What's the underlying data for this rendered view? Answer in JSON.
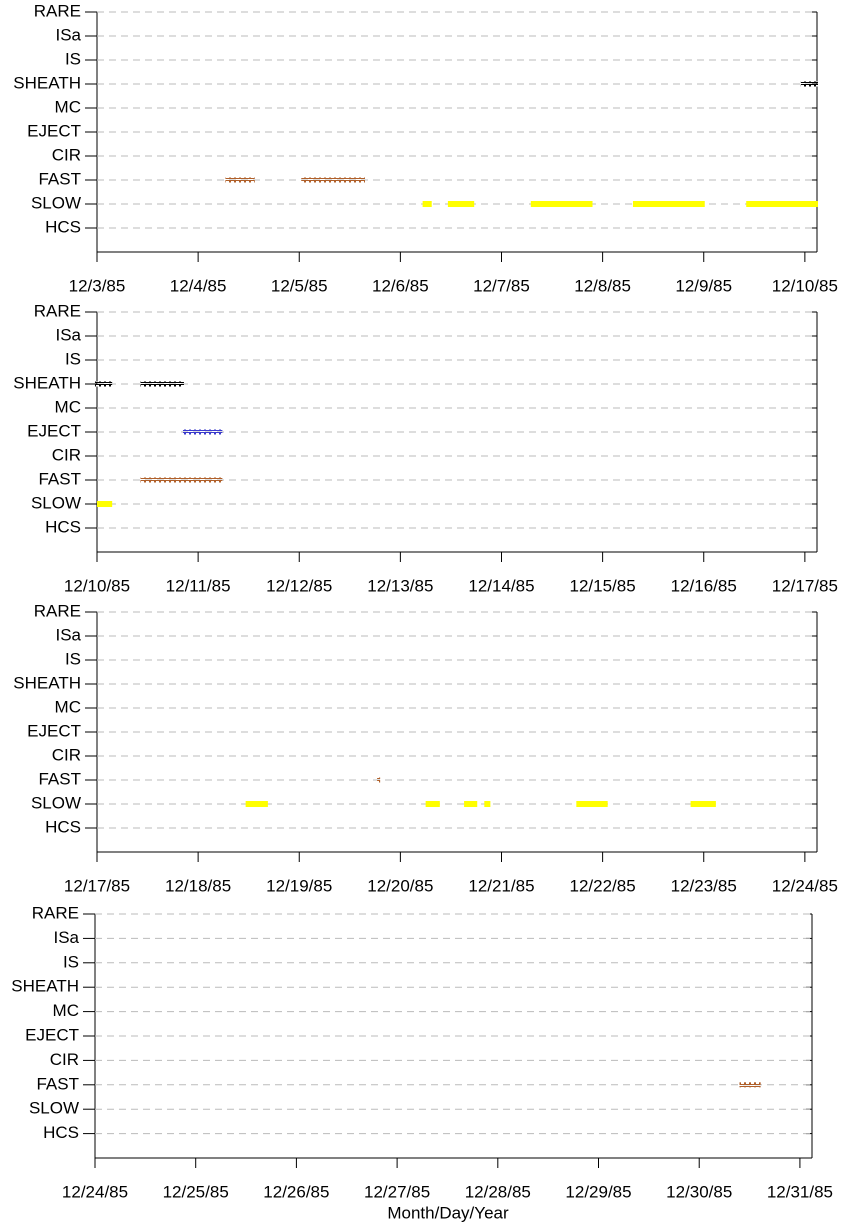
{
  "chart_data": [
    {
      "type": "timeline",
      "categories": [
        "RARE",
        "ISa",
        "IS",
        "SHEATH",
        "MC",
        "EJECT",
        "CIR",
        "FAST",
        "SLOW",
        "HCS"
      ],
      "colors": [
        "#000000",
        "#000000",
        "#000000",
        "#000000",
        "#000000",
        "#3a3acc",
        "#000000",
        "#b0602a",
        "#ffff00",
        "#000000"
      ],
      "styles": [
        "squares",
        "squares",
        "squares",
        "squares",
        "squares",
        "squares",
        "squares",
        "squares",
        "bar",
        "squares"
      ],
      "values": [
        [],
        [],
        [],
        [
          [
            9.96,
            10.13
          ]
        ],
        [],
        [],
        [],
        [
          [
            4.27,
            4.56
          ],
          [
            5.02,
            5.65
          ]
        ],
        [
          [
            6.22,
            6.31
          ],
          [
            6.47,
            6.73
          ],
          [
            7.29,
            7.9
          ],
          [
            8.3,
            9.01
          ],
          [
            9.42,
            10.13
          ]
        ],
        []
      ],
      "xlim": [
        3,
        10.12
      ],
      "xticks": [
        {
          "value": 3,
          "label": "12/3/85"
        },
        {
          "value": 4,
          "label": "12/4/85"
        },
        {
          "value": 5,
          "label": "12/5/85"
        },
        {
          "value": 6,
          "label": "12/6/85"
        },
        {
          "value": 7,
          "label": "12/7/85"
        },
        {
          "value": 8,
          "label": "12/8/85"
        },
        {
          "value": 9,
          "label": "12/9/85"
        },
        {
          "value": 10,
          "label": "12/10/85"
        }
      ],
      "grid": true
    },
    {
      "type": "timeline",
      "categories": [
        "RARE",
        "ISa",
        "IS",
        "SHEATH",
        "MC",
        "EJECT",
        "CIR",
        "FAST",
        "SLOW",
        "HCS"
      ],
      "colors": [
        "#000000",
        "#000000",
        "#000000",
        "#000000",
        "#000000",
        "#3a3acc",
        "#000000",
        "#b0602a",
        "#ffff00",
        "#000000"
      ],
      "styles": [
        "squares",
        "squares",
        "squares",
        "squares",
        "squares",
        "squares",
        "squares",
        "squares",
        "bar",
        "squares"
      ],
      "values": [
        [],
        [],
        [],
        [
          [
            9.98,
            10.15
          ],
          [
            10.43,
            10.86
          ]
        ],
        [],
        [
          [
            10.85,
            11.24
          ]
        ],
        [],
        [
          [
            10.43,
            11.24
          ]
        ],
        [
          [
            10,
            10.15
          ]
        ],
        []
      ],
      "xlim": [
        10,
        17.12
      ],
      "xticks": [
        {
          "value": 10,
          "label": "12/10/85"
        },
        {
          "value": 11,
          "label": "12/11/85"
        },
        {
          "value": 12,
          "label": "12/12/85"
        },
        {
          "value": 13,
          "label": "12/13/85"
        },
        {
          "value": 14,
          "label": "12/14/85"
        },
        {
          "value": 15,
          "label": "12/15/85"
        },
        {
          "value": 16,
          "label": "12/16/85"
        },
        {
          "value": 17,
          "label": "12/17/85"
        }
      ],
      "grid": true
    },
    {
      "type": "timeline",
      "categories": [
        "RARE",
        "ISa",
        "IS",
        "SHEATH",
        "MC",
        "EJECT",
        "CIR",
        "FAST",
        "SLOW",
        "HCS"
      ],
      "colors": [
        "#000000",
        "#000000",
        "#000000",
        "#000000",
        "#000000",
        "#3a3acc",
        "#000000",
        "#b0602a",
        "#ffff00",
        "#000000"
      ],
      "styles": [
        "squares",
        "squares",
        "squares",
        "squares",
        "squares",
        "squares",
        "squares",
        "squares",
        "bar",
        "squares"
      ],
      "values": [
        [],
        [],
        [],
        [],
        [],
        [],
        [],
        [
          [
            19.77,
            19.8
          ]
        ],
        [
          [
            18.47,
            18.69
          ],
          [
            20.25,
            20.39
          ],
          [
            20.63,
            20.76
          ],
          [
            20.83,
            20.89
          ],
          [
            21.74,
            22.05
          ],
          [
            22.87,
            23.12
          ]
        ],
        []
      ],
      "xlim": [
        17,
        24.12
      ],
      "xticks": [
        {
          "value": 17,
          "label": "12/17/85"
        },
        {
          "value": 18,
          "label": "12/18/85"
        },
        {
          "value": 19,
          "label": "12/19/85"
        },
        {
          "value": 20,
          "label": "12/20/85"
        },
        {
          "value": 21,
          "label": "12/21/85"
        },
        {
          "value": 22,
          "label": "12/22/85"
        },
        {
          "value": 23,
          "label": "12/23/85"
        },
        {
          "value": 24,
          "label": "12/24/85"
        }
      ],
      "grid": true
    },
    {
      "type": "timeline",
      "categories": [
        "RARE",
        "ISa",
        "IS",
        "SHEATH",
        "MC",
        "EJECT",
        "CIR",
        "FAST",
        "SLOW",
        "HCS"
      ],
      "colors": [
        "#000000",
        "#000000",
        "#000000",
        "#000000",
        "#000000",
        "#3a3acc",
        "#000000",
        "#b0602a",
        "#ffff00",
        "#000000"
      ],
      "styles": [
        "squares",
        "squares",
        "squares",
        "squares",
        "squares",
        "squares",
        "squares",
        "squares",
        "bar",
        "squares"
      ],
      "values": [
        [],
        [],
        [],
        [],
        [],
        [],
        [],
        [
          [
            30.4,
            30.61
          ]
        ],
        [],
        []
      ],
      "xlim": [
        24,
        31.12
      ],
      "xticks": [
        {
          "value": 24,
          "label": "12/24/85"
        },
        {
          "value": 25,
          "label": "12/25/85"
        },
        {
          "value": 26,
          "label": "12/26/85"
        },
        {
          "value": 27,
          "label": "12/27/85"
        },
        {
          "value": 28,
          "label": "12/28/85"
        },
        {
          "value": 29,
          "label": "12/29/85"
        },
        {
          "value": 30,
          "label": "12/30/85"
        },
        {
          "value": 31,
          "label": "12/31/85"
        }
      ],
      "xlabel": "Month/Day/Year",
      "grid": true
    }
  ]
}
